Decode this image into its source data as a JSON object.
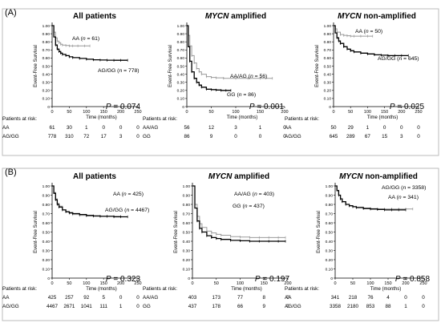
{
  "figure": {
    "panel_labels": [
      "(A)",
      "(B)"
    ],
    "y_axis_label": "Event-Free Survival",
    "x_axis_label": "Time (months)",
    "risk_header": "Patients at risk:"
  },
  "chart_data": [
    {
      "type": "line",
      "panel": "(A)",
      "title": "All patients",
      "title_italic": "",
      "xlabel": "Time (months)",
      "ylabel": "Event-Free Survival",
      "xlim": [
        0,
        250
      ],
      "ylim": [
        0,
        1.0
      ],
      "xticks": [
        0,
        50,
        100,
        150,
        200,
        250
      ],
      "yticks": [
        "0",
        "0.10",
        "0.20",
        "0.30",
        "0.40",
        "0.50",
        "0.60",
        "0.70",
        "0.80",
        "0.90",
        "1.00"
      ],
      "pvalue": "P = 0.074",
      "series": [
        {
          "name": "AA (n = 61)",
          "label_pre": "AA (",
          "label_n": "n",
          "label_post": " = 61)",
          "color": "#9a9a9a",
          "x": [
            0,
            5,
            10,
            15,
            20,
            25,
            30,
            40,
            50,
            60,
            75,
            95,
            110
          ],
          "y": [
            1.0,
            0.92,
            0.85,
            0.81,
            0.79,
            0.77,
            0.76,
            0.755,
            0.75,
            0.75,
            0.75,
            0.75,
            0.75
          ]
        },
        {
          "name": "AG/GG (n = 778)",
          "label_pre": "AG/GG (",
          "label_n": "n",
          "label_post": " = 778)",
          "color": "#000000",
          "x": [
            0,
            5,
            10,
            15,
            20,
            25,
            30,
            40,
            50,
            60,
            80,
            100,
            120,
            140,
            160,
            180,
            200,
            220
          ],
          "y": [
            1.0,
            0.86,
            0.76,
            0.71,
            0.68,
            0.66,
            0.645,
            0.63,
            0.615,
            0.605,
            0.595,
            0.585,
            0.578,
            0.575,
            0.573,
            0.572,
            0.572,
            0.572
          ]
        }
      ],
      "risk": {
        "times": [
          0,
          50,
          100,
          150,
          200,
          250
        ],
        "rows": [
          {
            "name": "AA",
            "values": [
              "61",
              "30",
              "1",
              "0",
              "0",
              "0"
            ]
          },
          {
            "name": "AG/GG",
            "values": [
              "778",
              "310",
              "72",
              "17",
              "3",
              "0"
            ]
          }
        ]
      }
    },
    {
      "type": "line",
      "panel": "(A)",
      "title": " amplified",
      "title_italic": "MYCN",
      "xlabel": "Time (months)",
      "ylabel": "Event-Free Survival",
      "xlim": [
        0,
        200
      ],
      "ylim": [
        0,
        1.0
      ],
      "xticks": [
        0,
        50,
        100,
        150,
        200
      ],
      "yticks": [
        "0",
        "0.10",
        "0.20",
        "0.30",
        "0.40",
        "0.50",
        "0.60",
        "0.70",
        "0.80",
        "0.90",
        "1.00"
      ],
      "pvalue": "P = 0.001",
      "series": [
        {
          "name": "AA/AG (n = 56)",
          "label_pre": "AA/AG (",
          "label_n": "n",
          "label_post": " = 56)",
          "color": "#9a9a9a",
          "x": [
            0,
            3,
            6,
            10,
            15,
            20,
            25,
            30,
            40,
            50,
            60,
            75,
            100,
            125,
            150,
            175
          ],
          "y": [
            1.0,
            0.88,
            0.75,
            0.63,
            0.54,
            0.47,
            0.43,
            0.4,
            0.37,
            0.36,
            0.355,
            0.35,
            0.35,
            0.35,
            0.35,
            0.35
          ]
        },
        {
          "name": "GG (n = 86)",
          "label_pre": "GG (",
          "label_n": "n",
          "label_post": " = 86)",
          "color": "#000000",
          "x": [
            0,
            3,
            6,
            10,
            15,
            20,
            25,
            30,
            40,
            50,
            60,
            70,
            80,
            90
          ],
          "y": [
            1.0,
            0.74,
            0.56,
            0.43,
            0.35,
            0.3,
            0.265,
            0.24,
            0.215,
            0.21,
            0.205,
            0.2,
            0.2,
            0.2
          ]
        }
      ],
      "risk": {
        "times": [
          0,
          50,
          100,
          150,
          200
        ],
        "rows": [
          {
            "name": "AA/AG",
            "values": [
              "56",
              "12",
              "3",
              "1",
              "0"
            ]
          },
          {
            "name": "GG",
            "values": [
              "86",
              "9",
              "0",
              "0",
              "0"
            ]
          }
        ]
      }
    },
    {
      "type": "line",
      "panel": "(A)",
      "title": " non-amplified",
      "title_italic": "MYCN",
      "xlabel": "Time (months)",
      "ylabel": "Event-Free Survival",
      "xlim": [
        0,
        250
      ],
      "ylim": [
        0,
        1.0
      ],
      "xticks": [
        0,
        50,
        100,
        150,
        200,
        250
      ],
      "yticks": [
        "0",
        "0.10",
        "0.20",
        "0.30",
        "0.40",
        "0.50",
        "0.60",
        "0.70",
        "0.80",
        "0.90",
        "1.00"
      ],
      "pvalue": "P = 0.025",
      "series": [
        {
          "name": "AA (n = 50)",
          "label_pre": "AA (",
          "label_n": "n",
          "label_post": " = 50)",
          "color": "#9a9a9a",
          "x": [
            0,
            5,
            10,
            20,
            30,
            40,
            50,
            60,
            80,
            100,
            115
          ],
          "y": [
            1.0,
            0.96,
            0.92,
            0.89,
            0.88,
            0.875,
            0.87,
            0.87,
            0.87,
            0.87,
            0.87
          ]
        },
        {
          "name": "AG/GG (n = 645)",
          "label_pre": "AG/GG (",
          "label_n": "n",
          "label_post": " = 645)",
          "color": "#000000",
          "x": [
            0,
            5,
            10,
            15,
            20,
            30,
            40,
            50,
            60,
            80,
            100,
            120,
            140,
            160,
            180,
            200,
            220
          ],
          "y": [
            1.0,
            0.91,
            0.85,
            0.81,
            0.78,
            0.74,
            0.71,
            0.69,
            0.675,
            0.66,
            0.65,
            0.64,
            0.635,
            0.63,
            0.63,
            0.63,
            0.63
          ]
        }
      ],
      "risk": {
        "times": [
          0,
          50,
          100,
          150,
          200,
          250
        ],
        "rows": [
          {
            "name": "AA",
            "values": [
              "50",
              "29",
              "1",
              "0",
              "0",
              "0"
            ]
          },
          {
            "name": "AG/GG",
            "values": [
              "645",
              "289",
              "67",
              "15",
              "3",
              "0"
            ]
          }
        ]
      }
    },
    {
      "type": "line",
      "panel": "(B)",
      "title": "All patients",
      "title_italic": "",
      "xlabel": "Time (months)",
      "ylabel": "Event-Free Survival",
      "xlim": [
        0,
        250
      ],
      "ylim": [
        0,
        1.0
      ],
      "xticks": [
        0,
        50,
        100,
        150,
        200,
        250
      ],
      "yticks": [
        "0",
        "0.10",
        "0.20",
        "0.30",
        "0.40",
        "0.50",
        "0.60",
        "0.70",
        "0.80",
        "0.90",
        "1.00"
      ],
      "pvalue": "P = 0.323",
      "series": [
        {
          "name": "AA (n = 425)",
          "label_pre": "AA (",
          "label_n": "n",
          "label_post": " = 425)",
          "color": "#9a9a9a",
          "x": [
            0,
            5,
            10,
            15,
            20,
            30,
            40,
            50,
            60,
            80,
            100,
            120,
            140,
            160,
            180,
            200
          ],
          "y": [
            1.0,
            0.93,
            0.86,
            0.81,
            0.78,
            0.74,
            0.72,
            0.7,
            0.69,
            0.68,
            0.675,
            0.67,
            0.67,
            0.67,
            0.67,
            0.67
          ]
        },
        {
          "name": "AG/GG (n = 4467)",
          "label_pre": "AG/GG (",
          "label_n": "n",
          "label_post": " = 4467)",
          "color": "#000000",
          "x": [
            0,
            5,
            10,
            15,
            20,
            30,
            40,
            50,
            60,
            80,
            100,
            120,
            140,
            160,
            180,
            200,
            220
          ],
          "y": [
            1.0,
            0.92,
            0.85,
            0.8,
            0.77,
            0.74,
            0.72,
            0.71,
            0.7,
            0.69,
            0.68,
            0.675,
            0.67,
            0.67,
            0.665,
            0.665,
            0.665
          ]
        }
      ],
      "risk": {
        "times": [
          0,
          50,
          100,
          150,
          200,
          250
        ],
        "rows": [
          {
            "name": "AA",
            "values": [
              "425",
              "257",
              "92",
              "5",
              "0",
              "0"
            ]
          },
          {
            "name": "AG/GG",
            "values": [
              "4467",
              "2671",
              "1041",
              "111",
              "1",
              "0"
            ]
          }
        ]
      }
    },
    {
      "type": "line",
      "panel": "(B)",
      "title": " amplified",
      "title_italic": "MYCN",
      "xlabel": "Time (months)",
      "ylabel": "Event-Free Survival",
      "xlim": [
        0,
        200
      ],
      "ylim": [
        0,
        1.0
      ],
      "xticks": [
        0,
        50,
        100,
        150,
        200
      ],
      "yticks": [
        "0",
        "0.10",
        "0.20",
        "0.30",
        "0.40",
        "0.50",
        "0.60",
        "0.70",
        "0.80",
        "0.90",
        "1.00"
      ],
      "pvalue": "P = 0.197",
      "series": [
        {
          "name": "AA/AG (n = 403)",
          "label_pre": "AA/AG (",
          "label_n": "n",
          "label_post": " = 403)",
          "color": "#9a9a9a",
          "x": [
            0,
            5,
            10,
            15,
            20,
            30,
            40,
            50,
            60,
            80,
            100,
            120,
            140,
            160,
            180,
            195
          ],
          "y": [
            1.0,
            0.8,
            0.67,
            0.59,
            0.55,
            0.51,
            0.49,
            0.475,
            0.465,
            0.45,
            0.445,
            0.44,
            0.44,
            0.44,
            0.44,
            0.44
          ]
        },
        {
          "name": "GG (n = 437)",
          "label_pre": "GG (",
          "label_n": "n",
          "label_post": " = 437)",
          "color": "#000000",
          "x": [
            0,
            5,
            10,
            15,
            20,
            30,
            40,
            50,
            60,
            80,
            100,
            120,
            140,
            160,
            180,
            195
          ],
          "y": [
            1.0,
            0.76,
            0.62,
            0.54,
            0.5,
            0.46,
            0.44,
            0.43,
            0.42,
            0.41,
            0.405,
            0.4,
            0.4,
            0.4,
            0.4,
            0.4
          ]
        }
      ],
      "risk": {
        "times": [
          0,
          50,
          100,
          150,
          200
        ],
        "rows": [
          {
            "name": "AA/AG",
            "values": [
              "403",
              "173",
              "77",
              "8",
              "0"
            ]
          },
          {
            "name": "GG",
            "values": [
              "437",
              "178",
              "66",
              "9",
              "0"
            ]
          }
        ]
      }
    },
    {
      "type": "line",
      "panel": "(B)",
      "title": " non-amplified",
      "title_italic": "MYCN",
      "xlabel": "Time (months)",
      "ylabel": "Event-Free Survival",
      "xlim": [
        0,
        250
      ],
      "ylim": [
        0,
        1.0
      ],
      "xticks": [
        0,
        50,
        100,
        150,
        200,
        250
      ],
      "yticks": [
        "0",
        "0.10",
        "0.20",
        "0.30",
        "0.40",
        "0.50",
        "0.60",
        "0.70",
        "0.80",
        "0.90",
        "1.00"
      ],
      "pvalue": "P = 0.858",
      "series": [
        {
          "name": "AG/GG (n = 3358)",
          "label_pre": "AG/GG (",
          "label_n": "n",
          "label_post": " = 3358)",
          "color": "#9a9a9a",
          "x": [
            0,
            5,
            10,
            15,
            20,
            30,
            40,
            50,
            60,
            80,
            100,
            120,
            140,
            160,
            180,
            200,
            220
          ],
          "y": [
            1.0,
            0.95,
            0.9,
            0.86,
            0.83,
            0.8,
            0.785,
            0.775,
            0.77,
            0.76,
            0.755,
            0.75,
            0.75,
            0.75,
            0.75,
            0.75,
            0.75
          ]
        },
        {
          "name": "AA (n = 341)",
          "label_pre": "AA (",
          "label_n": "n",
          "label_post": " = 341)",
          "color": "#000000",
          "x": [
            0,
            5,
            10,
            15,
            20,
            30,
            40,
            50,
            60,
            80,
            100,
            120,
            140,
            160,
            180,
            200
          ],
          "y": [
            1.0,
            0.95,
            0.9,
            0.86,
            0.83,
            0.8,
            0.785,
            0.775,
            0.765,
            0.755,
            0.75,
            0.745,
            0.74,
            0.74,
            0.74,
            0.74
          ]
        }
      ],
      "risk": {
        "times": [
          0,
          50,
          100,
          150,
          200,
          250
        ],
        "rows": [
          {
            "name": "AA",
            "values": [
              "341",
              "218",
              "76",
              "4",
              "0",
              "0"
            ]
          },
          {
            "name": "AG/GG",
            "values": [
              "3358",
              "2180",
              "853",
              "88",
              "1",
              "0"
            ]
          }
        ]
      }
    }
  ]
}
